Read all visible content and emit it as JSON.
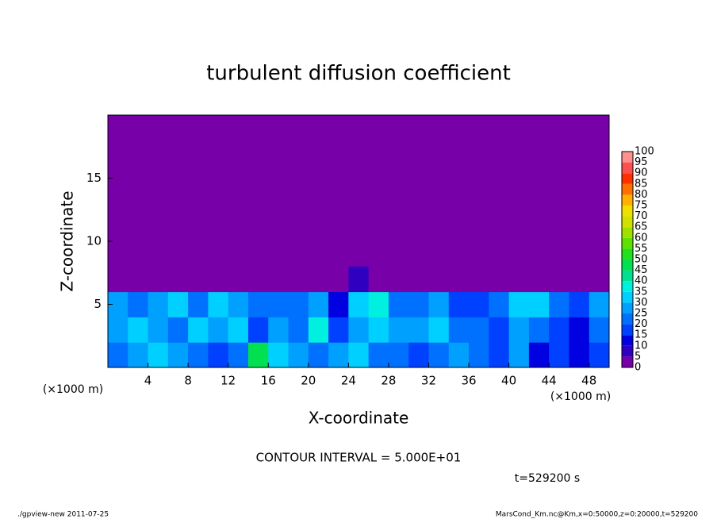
{
  "chart_data": {
    "type": "contour",
    "title": "turbulent diffusion coefficient",
    "xlabel": "X-coordinate",
    "ylabel": "Z-coordinate",
    "xunit": "(×1000 m)",
    "yunit": "(×1000 m)",
    "contour_note": "CONTOUR INTERVAL = 5.000E+01",
    "time_label": "t=529200 s",
    "footer_left": "./gpview-new   2011-07-25",
    "footer_right": "MarsCond_Km.nc@Km,x=0:50000,z=0:20000,t=529200",
    "xlim": [
      0,
      50
    ],
    "ylim": [
      0,
      20
    ],
    "xticks": [
      4,
      8,
      12,
      16,
      20,
      24,
      28,
      32,
      36,
      40,
      44,
      48
    ],
    "yticks": [
      5,
      10,
      15
    ],
    "x": [
      1,
      3,
      5,
      7,
      9,
      11,
      13,
      15,
      17,
      19,
      21,
      23,
      25,
      27,
      29,
      31,
      33,
      35,
      37,
      39,
      41,
      43,
      45,
      47,
      49
    ],
    "y": [
      1,
      3,
      5,
      7
    ],
    "z": [
      [
        20,
        25,
        30,
        25,
        20,
        15,
        20,
        45,
        30,
        25,
        20,
        25,
        30,
        20,
        20,
        15,
        20,
        25,
        20,
        15,
        25,
        10,
        15,
        10,
        15
      ],
      [
        25,
        30,
        25,
        20,
        30,
        25,
        30,
        15,
        25,
        20,
        35,
        15,
        25,
        30,
        25,
        25,
        30,
        20,
        20,
        15,
        25,
        20,
        15,
        10,
        20
      ],
      [
        25,
        20,
        25,
        30,
        20,
        30,
        25,
        20,
        20,
        20,
        25,
        10,
        30,
        35,
        20,
        20,
        25,
        15,
        15,
        20,
        30,
        30,
        20,
        15,
        25
      ],
      [
        0,
        0,
        0,
        0,
        0,
        0,
        0,
        0,
        0,
        0,
        0,
        0,
        5,
        0,
        0,
        0,
        0,
        0,
        0,
        0,
        0,
        0,
        0,
        0,
        0
      ]
    ],
    "levels": [
      0,
      5,
      10,
      15,
      20,
      25,
      30,
      35,
      40,
      45,
      50,
      55,
      60,
      65,
      70,
      75,
      80,
      85,
      90,
      95,
      100
    ],
    "colors": [
      "#7800a8",
      "#3000c0",
      "#0000e0",
      "#0040ff",
      "#0070ff",
      "#00a0ff",
      "#00d0ff",
      "#00f0e0",
      "#00e090",
      "#00e050",
      "#20e020",
      "#60e000",
      "#a0e000",
      "#d0e000",
      "#f0e000",
      "#ffb000",
      "#ff7000",
      "#ff3000",
      "#ff5050",
      "#ff9090"
    ]
  }
}
